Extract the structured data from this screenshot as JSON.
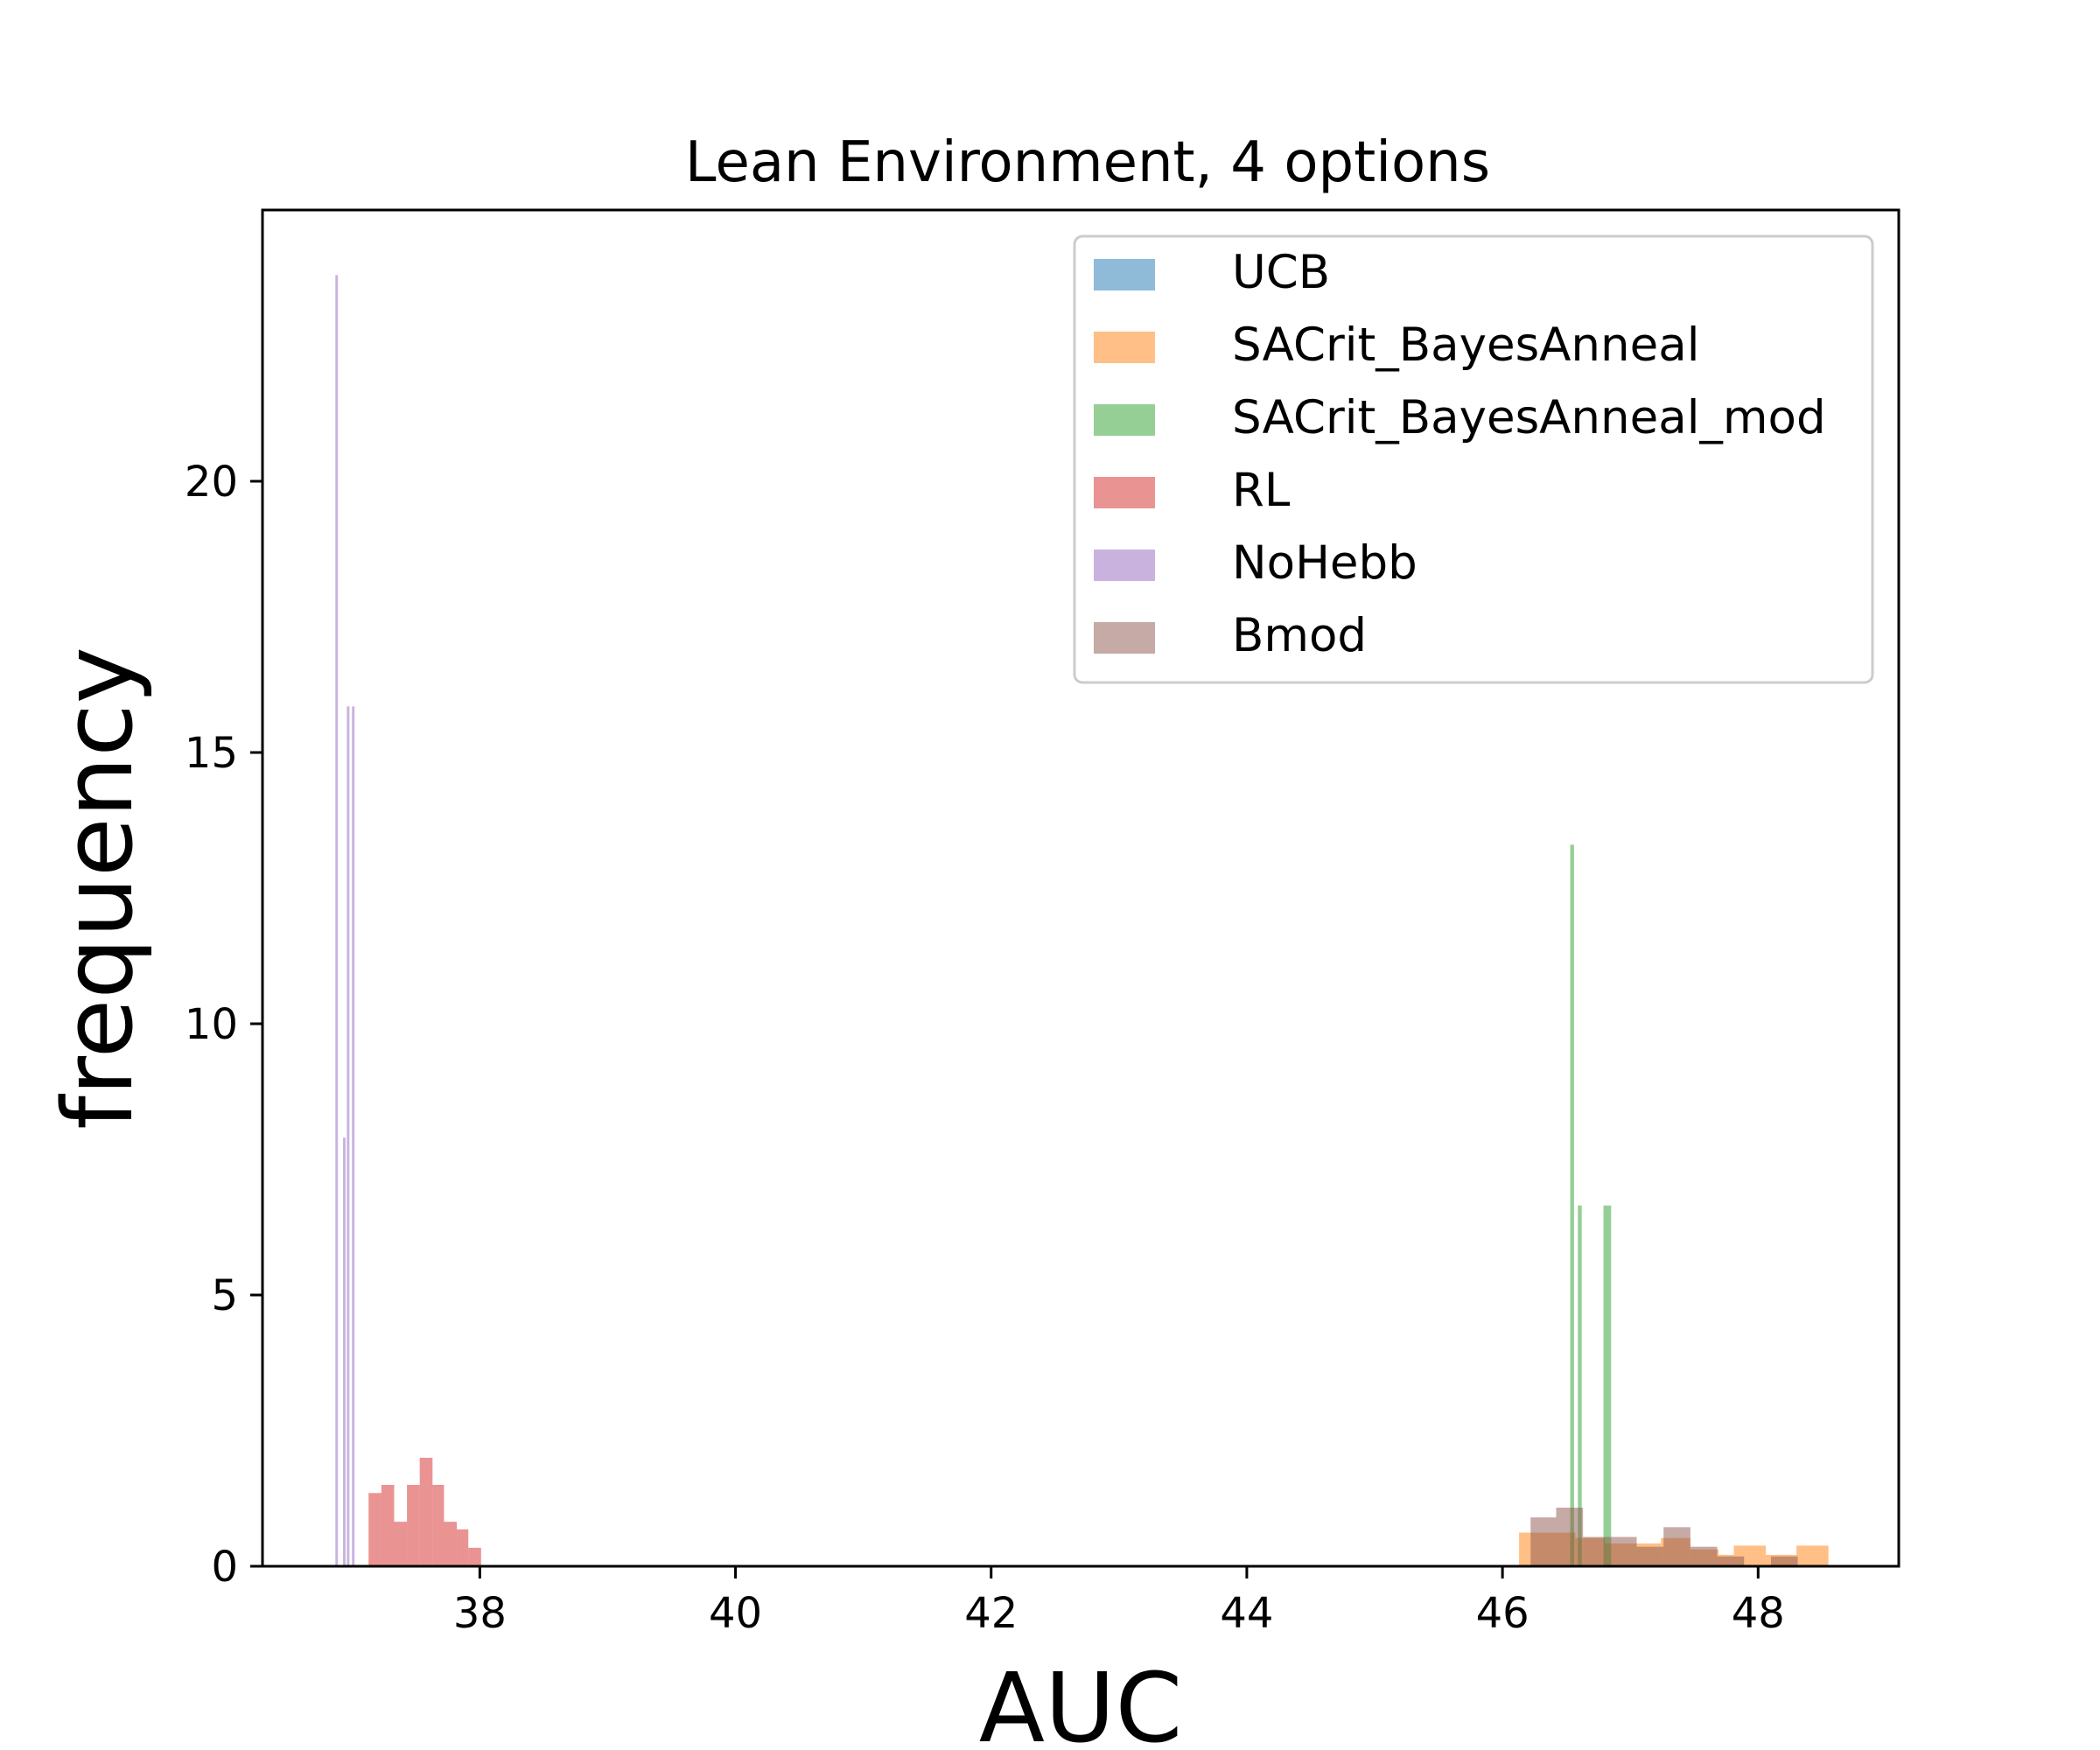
{
  "chart_data": {
    "type": "bar",
    "title": "Lean Environment, 4 options",
    "xlabel": "AUC",
    "ylabel": "frequency",
    "xlim": [
      36.3,
      49.1
    ],
    "ylim": [
      0,
      25
    ],
    "xticks": [
      38,
      40,
      42,
      44,
      46,
      48
    ],
    "yticks": [
      0,
      5,
      10,
      15,
      20
    ],
    "grid": false,
    "legend_position": "top-right",
    "series": [
      {
        "name": "UCB",
        "color": "#1f77b4",
        "bins": []
      },
      {
        "name": "SACrit_BayesAnneal",
        "color": "#ff7f0e",
        "bins": [
          {
            "x0": 46.13,
            "x1": 46.35,
            "y": 0.62
          },
          {
            "x0": 46.35,
            "x1": 46.57,
            "y": 0.62
          },
          {
            "x0": 46.57,
            "x1": 46.8,
            "y": 0.52
          },
          {
            "x0": 46.8,
            "x1": 47.02,
            "y": 0.42
          },
          {
            "x0": 47.02,
            "x1": 47.24,
            "y": 0.42
          },
          {
            "x0": 47.24,
            "x1": 47.47,
            "y": 0.52
          },
          {
            "x0": 47.47,
            "x1": 47.69,
            "y": 0.31
          },
          {
            "x0": 47.69,
            "x1": 47.81,
            "y": 0.21
          },
          {
            "x0": 47.81,
            "x1": 48.06,
            "y": 0.38
          },
          {
            "x0": 48.06,
            "x1": 48.3,
            "y": 0.21
          },
          {
            "x0": 48.3,
            "x1": 48.55,
            "y": 0.38
          }
        ]
      },
      {
        "name": "SACrit_BayesAnneal_mod",
        "color": "#2ca02c",
        "bins": [
          {
            "x0": 46.53,
            "x1": 46.56,
            "y": 13.3
          },
          {
            "x0": 46.59,
            "x1": 46.62,
            "y": 6.65
          },
          {
            "x0": 46.79,
            "x1": 46.85,
            "y": 6.65
          }
        ]
      },
      {
        "name": "RL",
        "color": "#d62728",
        "bins": [
          {
            "x0": 37.13,
            "x1": 37.23,
            "y": 1.35
          },
          {
            "x0": 37.23,
            "x1": 37.33,
            "y": 1.5
          },
          {
            "x0": 37.33,
            "x1": 37.43,
            "y": 0.82
          },
          {
            "x0": 37.43,
            "x1": 37.53,
            "y": 1.5
          },
          {
            "x0": 37.53,
            "x1": 37.63,
            "y": 2.0
          },
          {
            "x0": 37.63,
            "x1": 37.72,
            "y": 1.5
          },
          {
            "x0": 37.72,
            "x1": 37.82,
            "y": 0.82
          },
          {
            "x0": 37.82,
            "x1": 37.91,
            "y": 0.68
          },
          {
            "x0": 37.91,
            "x1": 38.01,
            "y": 0.34
          }
        ]
      },
      {
        "name": "NoHebb",
        "color": "#9467bd",
        "bins": [
          {
            "x0": 36.87,
            "x1": 36.89,
            "y": 23.8
          },
          {
            "x0": 36.93,
            "x1": 36.95,
            "y": 7.9
          },
          {
            "x0": 36.96,
            "x1": 36.98,
            "y": 15.85
          },
          {
            "x0": 37.0,
            "x1": 37.02,
            "y": 15.85
          }
        ]
      },
      {
        "name": "Bmod",
        "color": "#8c564b",
        "bins": [
          {
            "x0": 46.22,
            "x1": 46.42,
            "y": 0.9
          },
          {
            "x0": 46.42,
            "x1": 46.63,
            "y": 1.08
          },
          {
            "x0": 46.63,
            "x1": 46.84,
            "y": 0.54
          },
          {
            "x0": 46.84,
            "x1": 47.05,
            "y": 0.54
          },
          {
            "x0": 47.05,
            "x1": 47.26,
            "y": 0.36
          },
          {
            "x0": 47.26,
            "x1": 47.47,
            "y": 0.72
          },
          {
            "x0": 47.47,
            "x1": 47.68,
            "y": 0.36
          },
          {
            "x0": 47.68,
            "x1": 47.89,
            "y": 0.18
          },
          {
            "x0": 47.89,
            "x1": 48.1,
            "y": 0.0
          },
          {
            "x0": 48.1,
            "x1": 48.31,
            "y": 0.18
          }
        ]
      }
    ]
  }
}
